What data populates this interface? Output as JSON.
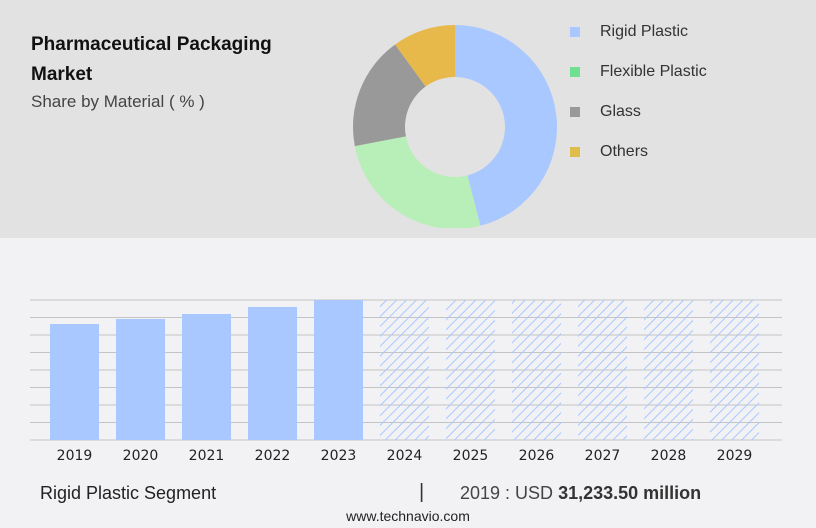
{
  "header": {
    "title": "Pharmaceutical Packaging Market",
    "subtitle": "Share by Material ( % )"
  },
  "chart_data": [
    {
      "type": "pie",
      "donut": true,
      "categories": [
        "Rigid Plastic",
        "Flexible Plastic",
        "Glass",
        "Others"
      ],
      "values": [
        46,
        26,
        18,
        10
      ],
      "colors": [
        "#a8c8ff",
        "#b8eeb8",
        "#999999",
        "#e6b94a"
      ],
      "legend_colors": [
        "#a8c8ff",
        "#6fe08f",
        "#999999",
        "#e0bd4a"
      ],
      "legend": "right"
    },
    {
      "type": "bar",
      "categories": [
        "2019",
        "2020",
        "2021",
        "2022",
        "2023",
        "2024",
        "2025",
        "2026",
        "2027",
        "2028",
        "2029"
      ],
      "values": [
        31233.5,
        32580,
        33930,
        35820,
        37700,
        null,
        null,
        null,
        null,
        null,
        null
      ],
      "forecast_categories": [
        "2024",
        "2025",
        "2026",
        "2027",
        "2028",
        "2029"
      ],
      "forecast_style": "hatched",
      "color": "#a8c8ff",
      "grid": true
    }
  ],
  "footer": {
    "segment": "Rigid Plastic Segment",
    "separator": "|",
    "year_label": "2019 : USD",
    "value": "31,233.50 million",
    "website": "www.technavio.com"
  }
}
